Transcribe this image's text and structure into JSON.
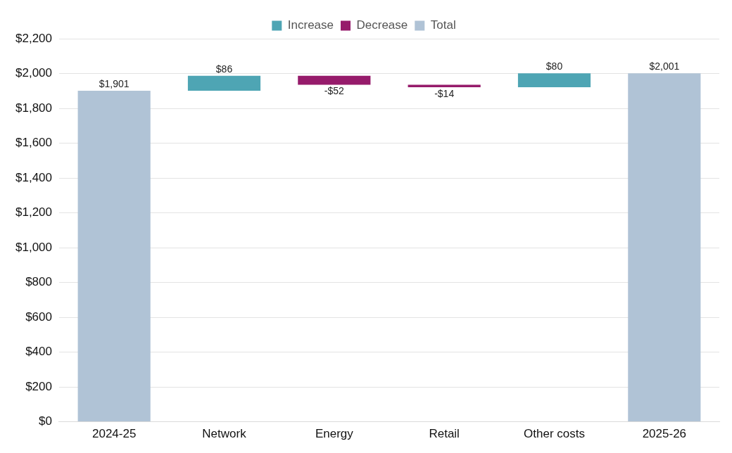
{
  "chart_data": {
    "type": "bar",
    "categories": [
      "2024-25",
      "Network",
      "Energy",
      "Retail",
      "Other costs",
      "2025-26"
    ],
    "series": [
      {
        "name": "Increase",
        "color": "#4ea5b4",
        "base": [
          null,
          1901,
          null,
          null,
          1921,
          null
        ],
        "values": [
          null,
          86,
          null,
          null,
          80,
          null
        ],
        "value_labels": [
          null,
          "$86",
          null,
          null,
          "$80",
          null
        ]
      },
      {
        "name": "Decrease",
        "color": "#961b6b",
        "base": [
          null,
          null,
          1987,
          1935,
          null,
          null
        ],
        "values": [
          null,
          null,
          -52,
          -14,
          null,
          null
        ],
        "value_labels": [
          null,
          null,
          "-$52",
          "-$14",
          null,
          null
        ]
      },
      {
        "name": "Total",
        "color": "#b0c3d6",
        "base": [
          0,
          null,
          null,
          null,
          null,
          0
        ],
        "values": [
          1901,
          null,
          null,
          null,
          null,
          2001
        ],
        "value_labels": [
          "$1,901",
          null,
          null,
          null,
          null,
          "$2,001"
        ]
      }
    ],
    "ylim": [
      0,
      2200
    ],
    "yticks": [
      {
        "value": 0,
        "label": "$0"
      },
      {
        "value": 200,
        "label": "$200"
      },
      {
        "value": 400,
        "label": "$400"
      },
      {
        "value": 600,
        "label": "$600"
      },
      {
        "value": 800,
        "label": "$800"
      },
      {
        "value": 1000,
        "label": "$1,000"
      },
      {
        "value": 1200,
        "label": "$1,200"
      },
      {
        "value": 1400,
        "label": "$1,400"
      },
      {
        "value": 1600,
        "label": "$1,600"
      },
      {
        "value": 1800,
        "label": "$1,800"
      },
      {
        "value": 2000,
        "label": "$2,000"
      },
      {
        "value": 2200,
        "label": "$2,200"
      }
    ],
    "grid": "y",
    "legend": "top"
  }
}
